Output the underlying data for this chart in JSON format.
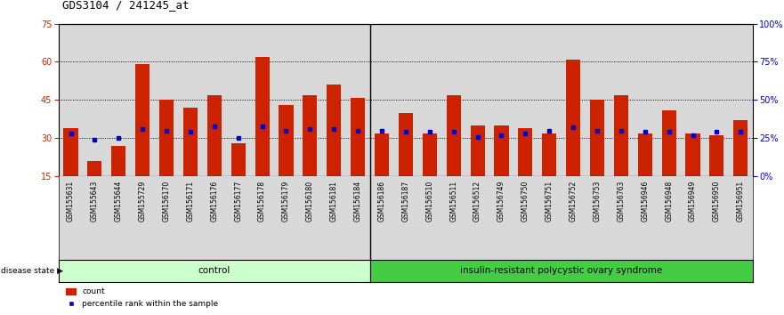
{
  "title": "GDS3104 / 241245_at",
  "samples": [
    "GSM155631",
    "GSM155643",
    "GSM155644",
    "GSM155729",
    "GSM156170",
    "GSM156171",
    "GSM156176",
    "GSM156177",
    "GSM156178",
    "GSM156179",
    "GSM156180",
    "GSM156181",
    "GSM156184",
    "GSM156186",
    "GSM156187",
    "GSM156510",
    "GSM156511",
    "GSM156512",
    "GSM156749",
    "GSM156750",
    "GSM156751",
    "GSM156752",
    "GSM156753",
    "GSM156763",
    "GSM156946",
    "GSM156948",
    "GSM156949",
    "GSM156950",
    "GSM156951"
  ],
  "counts": [
    34,
    21,
    27,
    59,
    45,
    42,
    47,
    28,
    62,
    43,
    47,
    51,
    46,
    32,
    40,
    32,
    47,
    35,
    35,
    34,
    32,
    61,
    45,
    47,
    32,
    41,
    32,
    31,
    37
  ],
  "percentile_ranks": [
    28,
    24,
    25,
    31,
    30,
    29,
    33,
    25,
    33,
    30,
    31,
    31,
    30,
    30,
    29,
    29,
    29,
    26,
    27,
    28,
    30,
    32,
    30,
    30,
    29,
    29,
    27,
    29,
    29
  ],
  "control_count": 13,
  "disease_count": 16,
  "control_label": "control",
  "disease_label": "insulin-resistant polycystic ovary syndrome",
  "disease_state_label": "disease state",
  "ylim_left": [
    15,
    75
  ],
  "ylim_right": [
    0,
    100
  ],
  "yticks_left": [
    15,
    30,
    45,
    60,
    75
  ],
  "yticks_right": [
    0,
    25,
    50,
    75,
    100
  ],
  "ytick_labels_right": [
    "0%",
    "25%",
    "50%",
    "75%",
    "100%"
  ],
  "bar_color": "#cc2200",
  "marker_color": "#0000cc",
  "plot_bg": "#d8d8d8",
  "control_bg": "#ccffcc",
  "disease_bg": "#44cc44",
  "legend_count_label": "count",
  "legend_percentile_label": "percentile rank within the sample",
  "title_fontsize": 9,
  "tick_fontsize": 7,
  "label_fontsize": 7
}
